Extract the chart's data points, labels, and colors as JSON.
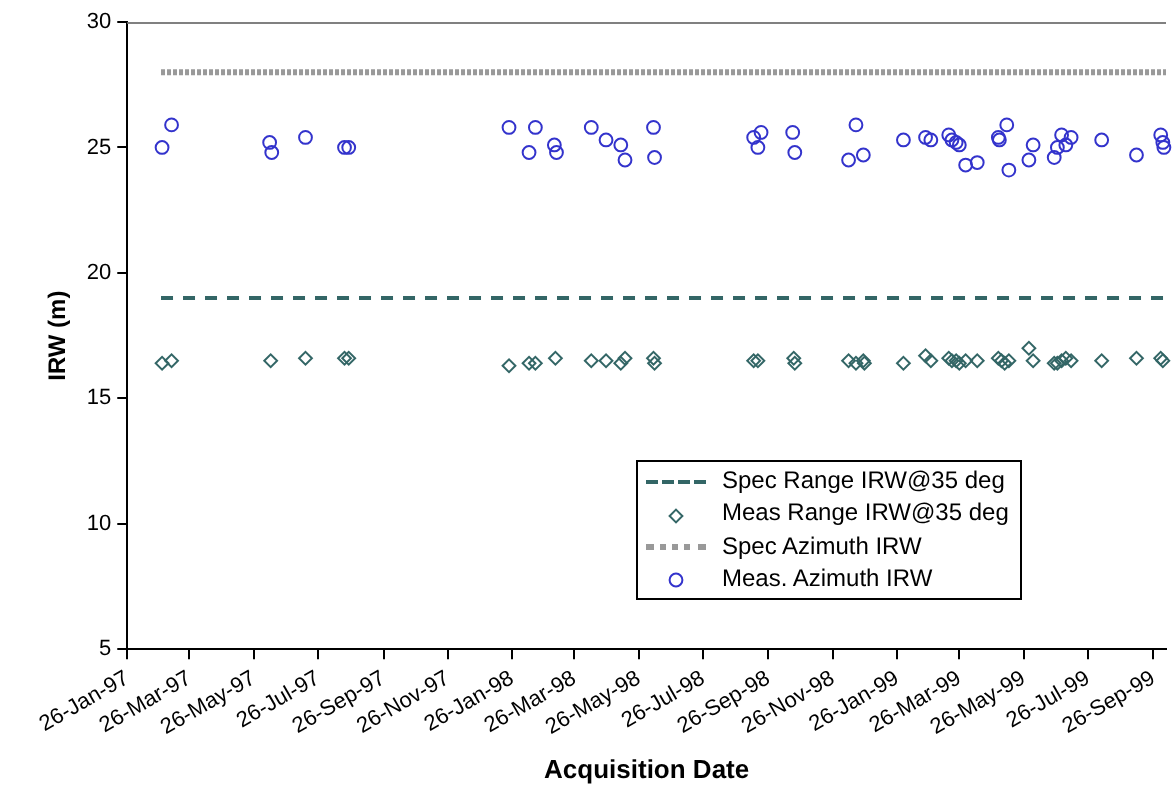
{
  "chart_data": {
    "type": "scatter",
    "xlabel": "Acquisition Date",
    "ylabel": "IRW (m)",
    "xlim": [
      "1997-01-26",
      "1999-10-08"
    ],
    "xticks": [
      {
        "value": "1997-01-26",
        "label": "26-Jan-97"
      },
      {
        "value": "1997-03-26",
        "label": "26-Mar-97"
      },
      {
        "value": "1997-05-26",
        "label": "26-May-97"
      },
      {
        "value": "1997-07-26",
        "label": "26-Jul-97"
      },
      {
        "value": "1997-09-26",
        "label": "26-Sep-97"
      },
      {
        "value": "1997-11-26",
        "label": "26-Nov-97"
      },
      {
        "value": "1998-01-26",
        "label": "26-Jan-98"
      },
      {
        "value": "1998-03-26",
        "label": "26-Mar-98"
      },
      {
        "value": "1998-05-26",
        "label": "26-May-98"
      },
      {
        "value": "1998-07-26",
        "label": "26-Jul-98"
      },
      {
        "value": "1998-09-26",
        "label": "26-Sep-98"
      },
      {
        "value": "1998-11-26",
        "label": "26-Nov-98"
      },
      {
        "value": "1999-01-26",
        "label": "26-Jan-99"
      },
      {
        "value": "1999-03-26",
        "label": "26-Mar-99"
      },
      {
        "value": "1999-05-26",
        "label": "26-May-99"
      },
      {
        "value": "1999-07-26",
        "label": "26-Jul-99"
      },
      {
        "value": "1999-09-26",
        "label": "26-Sep-99"
      }
    ],
    "ylim": [
      5,
      30
    ],
    "yticks": [
      5,
      10,
      15,
      20,
      25,
      30
    ],
    "grid": false,
    "legend": "bottom right",
    "series": [
      {
        "name": "Spec Range IRW@35 deg",
        "type": "line",
        "line_style": "dashed",
        "marker": "none",
        "color": "#336666",
        "x": [
          "1997-02-27",
          "1999-10-08"
        ],
        "values": [
          19,
          19
        ]
      },
      {
        "name": "Meas Range IRW@35 deg",
        "marker": "diamond",
        "color": "#336666",
        "x": [
          "1997-02-28",
          "1997-03-09",
          "1997-06-11",
          "1997-07-14",
          "1997-08-20",
          "1997-08-24",
          "1998-01-23",
          "1998-02-11",
          "1998-02-17",
          "1998-03-08",
          "1998-04-11",
          "1998-04-25",
          "1998-05-09",
          "1998-05-13",
          "1998-06-09",
          "1998-06-10",
          "1998-09-12",
          "1998-09-16",
          "1998-10-20",
          "1998-10-21",
          "1998-12-11",
          "1998-12-18",
          "1998-12-25",
          "1998-12-26",
          "1999-02-01",
          "1999-02-22",
          "1999-02-27",
          "1999-03-16",
          "1999-03-19",
          "1999-03-23",
          "1999-03-26",
          "1999-04-01",
          "1999-04-12",
          "1999-05-02",
          "1999-05-05",
          "1999-05-08",
          "1999-05-12",
          "1999-05-31",
          "1999-06-04",
          "1999-06-24",
          "1999-06-27",
          "1999-07-01",
          "1999-07-05",
          "1999-07-10",
          "1999-08-08",
          "1999-09-10",
          "1999-10-03",
          "1999-10-05"
        ],
        "values": [
          16.4,
          16.5,
          16.5,
          16.6,
          16.6,
          16.6,
          16.3,
          16.4,
          16.4,
          16.6,
          16.5,
          16.5,
          16.4,
          16.6,
          16.6,
          16.4,
          16.5,
          16.5,
          16.6,
          16.4,
          16.5,
          16.4,
          16.5,
          16.4,
          16.4,
          16.7,
          16.5,
          16.6,
          16.5,
          16.5,
          16.4,
          16.5,
          16.5,
          16.6,
          16.5,
          16.4,
          16.5,
          17.0,
          16.5,
          16.4,
          16.4,
          16.5,
          16.6,
          16.5,
          16.5,
          16.6,
          16.6,
          16.5
        ]
      },
      {
        "name": "Spec Azimuth IRW",
        "type": "line",
        "line_style": "dotted",
        "marker": "none",
        "color": "#999999",
        "x": [
          "1997-02-27",
          "1999-10-08"
        ],
        "values": [
          28,
          28
        ]
      },
      {
        "name": "Meas. Azimuth IRW",
        "marker": "circle",
        "color": "#3333cc",
        "x": [
          "1997-02-28",
          "1997-03-09",
          "1997-06-10",
          "1997-06-12",
          "1997-07-14",
          "1997-08-20",
          "1997-08-24",
          "1998-01-23",
          "1998-02-11",
          "1998-02-17",
          "1998-03-07",
          "1998-03-09",
          "1998-04-11",
          "1998-04-25",
          "1998-05-09",
          "1998-05-13",
          "1998-06-09",
          "1998-06-10",
          "1998-09-12",
          "1998-09-16",
          "1998-09-19",
          "1998-10-19",
          "1998-10-21",
          "1998-12-11",
          "1998-12-18",
          "1998-12-25",
          "1999-02-01",
          "1999-02-22",
          "1999-02-27",
          "1999-03-16",
          "1999-03-19",
          "1999-03-23",
          "1999-03-26",
          "1999-04-01",
          "1999-04-12",
          "1999-05-02",
          "1999-05-03",
          "1999-05-10",
          "1999-05-12",
          "1999-05-31",
          "1999-06-04",
          "1999-06-24",
          "1999-06-27",
          "1999-07-01",
          "1999-07-05",
          "1999-07-10",
          "1999-08-08",
          "1999-09-10",
          "1999-10-03",
          "1999-10-05",
          "1999-10-06"
        ],
        "values": [
          25.0,
          25.9,
          25.2,
          24.8,
          25.4,
          25.0,
          25.0,
          25.8,
          24.8,
          25.8,
          25.1,
          24.8,
          25.8,
          25.3,
          25.1,
          24.5,
          25.8,
          24.6,
          25.4,
          25.0,
          25.6,
          25.6,
          24.8,
          24.5,
          25.9,
          24.7,
          25.3,
          25.4,
          25.3,
          25.5,
          25.3,
          25.2,
          25.1,
          24.3,
          24.4,
          25.4,
          25.3,
          25.9,
          24.1,
          24.5,
          25.1,
          24.6,
          25.0,
          25.5,
          25.1,
          25.4,
          25.3,
          24.7,
          25.5,
          25.2,
          25.0
        ]
      }
    ]
  }
}
